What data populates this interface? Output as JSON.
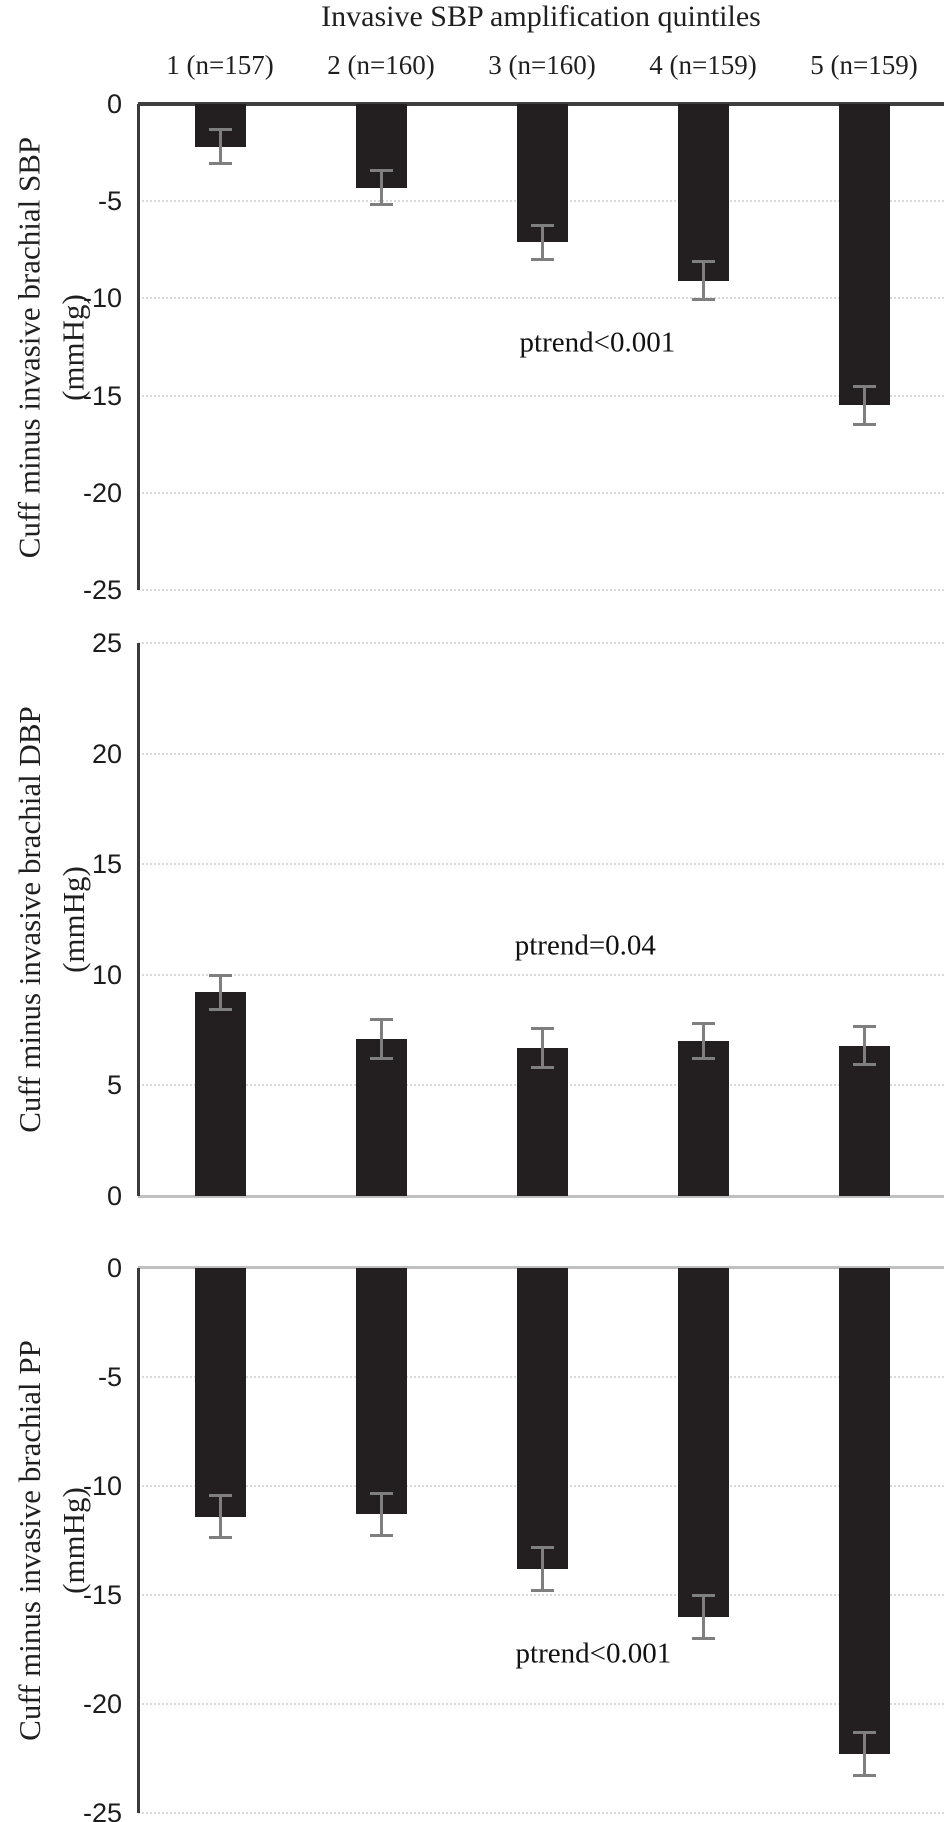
{
  "figure": {
    "title": "Invasive SBP amplification quintiles",
    "quintile_headers": [
      "1 (n=157)",
      "2 (n=160)",
      "3 (n=160)",
      "4 (n=159)",
      "5 (n=159)"
    ]
  },
  "colors": {
    "bar": "#231f20",
    "error_bar": "#7f7f7f",
    "gridline": "#d9d9d9",
    "axis_dark": "#3a3a3a",
    "axis_light": "#c0c0c0",
    "text": "#1a1a1a"
  },
  "chart_data": [
    {
      "id": "sbp",
      "type": "bar",
      "ylabel": "Cuff minus invasive brachial SBP (mmHg)",
      "ylabel_lines": [
        "Cuff minus invasive brachial SBP",
        "(mmHg)"
      ],
      "categories": [
        "1 (n=157)",
        "2 (n=160)",
        "3 (n=160)",
        "4 (n=159)",
        "5 (n=159)"
      ],
      "values": [
        -2.2,
        -4.3,
        -7.1,
        -9.1,
        -15.5
      ],
      "errors": [
        0.9,
        0.9,
        0.9,
        1.0,
        1.0
      ],
      "annotation": "ptrend<0.001",
      "annotation_pos": {
        "x_frac": 0.57,
        "y_value": -12.3
      },
      "ylim": [
        -25,
        0
      ],
      "yticks": [
        0,
        -5,
        -10,
        -15,
        -20,
        -25
      ],
      "grid": true,
      "legend": false
    },
    {
      "id": "dbp",
      "type": "bar",
      "ylabel": "Cuff minus invasive brachial DBP (mmHg)",
      "ylabel_lines": [
        "Cuff minus invasive brachial DBP",
        "(mmHg)"
      ],
      "categories": [
        "1 (n=157)",
        "2 (n=160)",
        "3 (n=160)",
        "4 (n=159)",
        "5 (n=159)"
      ],
      "values": [
        9.2,
        7.1,
        6.7,
        7.0,
        6.8
      ],
      "errors": [
        0.8,
        0.9,
        0.9,
        0.8,
        0.9
      ],
      "annotation": "ptrend=0.04",
      "annotation_pos": {
        "x_frac": 0.555,
        "y_value": 11.3
      },
      "ylim": [
        0,
        25
      ],
      "yticks": [
        25,
        20,
        15,
        10,
        5,
        0
      ],
      "grid": true,
      "legend": false
    },
    {
      "id": "pp",
      "type": "bar",
      "ylabel": "Cuff minus invasive brachial PP (mmHg)",
      "ylabel_lines": [
        "Cuff minus invasive brachial PP",
        "(mmHg)"
      ],
      "categories": [
        "1 (n=157)",
        "2 (n=160)",
        "3 (n=160)",
        "4 (n=159)",
        "5 (n=159)"
      ],
      "values": [
        -11.4,
        -11.3,
        -13.8,
        -16.0,
        -22.3
      ],
      "errors": [
        1.0,
        1.0,
        1.0,
        1.0,
        1.0
      ],
      "annotation": "ptrend<0.001",
      "annotation_pos": {
        "x_frac": 0.565,
        "y_value": -17.7
      },
      "ylim": [
        -25,
        0
      ],
      "yticks": [
        0,
        -5,
        -10,
        -15,
        -20,
        -25
      ],
      "grid": true,
      "legend": false
    }
  ]
}
